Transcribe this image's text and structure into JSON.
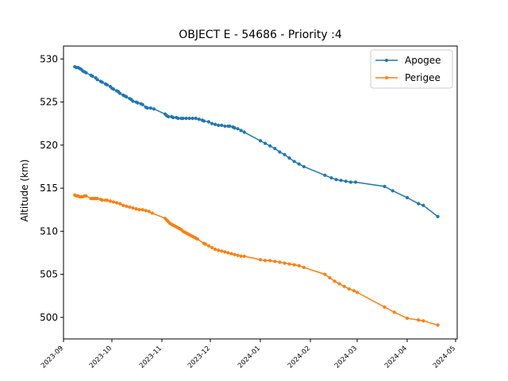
{
  "chart_data": {
    "type": "line",
    "title": "OBJECT E - 54686 - Priority :4",
    "xlabel": "",
    "ylabel": "Altitude (km)",
    "xlim": [
      "2023-09-01",
      "2024-05-02"
    ],
    "ylim": [
      497.5,
      531.5
    ],
    "yticks": [
      500,
      505,
      510,
      515,
      520,
      525,
      530
    ],
    "xticks": [
      "2023-09",
      "2023-10",
      "2023-11",
      "2023-12",
      "2024-01",
      "2024-02",
      "2024-03",
      "2024-04",
      "2024-05"
    ],
    "grid": false,
    "legend": "top-right",
    "series": [
      {
        "name": "Apogee",
        "color": "#1f77b4",
        "marker": "circle",
        "points": [
          [
            "2023-09-08",
            529.1
          ],
          [
            "2023-09-09",
            529.0
          ],
          [
            "2023-09-10",
            529.0
          ],
          [
            "2023-09-11",
            528.9
          ],
          [
            "2023-09-12",
            528.8
          ],
          [
            "2023-09-13",
            528.6
          ],
          [
            "2023-09-14",
            528.5
          ],
          [
            "2023-09-15",
            528.4
          ],
          [
            "2023-09-18",
            528.1
          ],
          [
            "2023-09-19",
            528.0
          ],
          [
            "2023-09-21",
            527.8
          ],
          [
            "2023-09-22",
            527.6
          ],
          [
            "2023-09-24",
            527.4
          ],
          [
            "2023-09-25",
            527.3
          ],
          [
            "2023-09-27",
            527.1
          ],
          [
            "2023-09-28",
            527.0
          ],
          [
            "2023-09-30",
            526.8
          ],
          [
            "2023-10-01",
            526.6
          ],
          [
            "2023-10-02",
            526.5
          ],
          [
            "2023-10-04",
            526.3
          ],
          [
            "2023-10-05",
            526.2
          ],
          [
            "2023-10-06",
            526.0
          ],
          [
            "2023-10-08",
            525.8
          ],
          [
            "2023-10-09",
            525.7
          ],
          [
            "2023-10-10",
            525.6
          ],
          [
            "2023-10-12",
            525.4
          ],
          [
            "2023-10-13",
            525.3
          ],
          [
            "2023-10-14",
            525.1
          ],
          [
            "2023-10-16",
            525.0
          ],
          [
            "2023-10-17",
            524.9
          ],
          [
            "2023-10-19",
            524.8
          ],
          [
            "2023-10-20",
            524.7
          ],
          [
            "2023-10-22",
            524.4
          ],
          [
            "2023-10-23",
            524.3
          ],
          [
            "2023-10-25",
            524.3
          ],
          [
            "2023-10-27",
            524.2
          ],
          [
            "2023-11-03",
            523.6
          ],
          [
            "2023-11-04",
            523.4
          ],
          [
            "2023-11-05",
            523.3
          ],
          [
            "2023-11-07",
            523.3
          ],
          [
            "2023-11-08",
            523.2
          ],
          [
            "2023-11-10",
            523.2
          ],
          [
            "2023-11-11",
            523.1
          ],
          [
            "2023-11-13",
            523.1
          ],
          [
            "2023-11-14",
            523.1
          ],
          [
            "2023-11-16",
            523.1
          ],
          [
            "2023-11-18",
            523.1
          ],
          [
            "2023-11-20",
            523.1
          ],
          [
            "2023-11-22",
            523.1
          ],
          [
            "2023-11-24",
            523.0
          ],
          [
            "2023-11-26",
            522.9
          ],
          [
            "2023-11-27",
            522.8
          ],
          [
            "2023-11-30",
            522.7
          ],
          [
            "2023-12-02",
            522.5
          ],
          [
            "2023-12-04",
            522.4
          ],
          [
            "2023-12-06",
            522.3
          ],
          [
            "2023-12-08",
            522.3
          ],
          [
            "2023-12-10",
            522.2
          ],
          [
            "2023-12-12",
            522.2
          ],
          [
            "2023-12-13",
            522.2
          ],
          [
            "2023-12-15",
            522.1
          ],
          [
            "2023-12-16",
            522.0
          ],
          [
            "2023-12-18",
            521.9
          ],
          [
            "2023-12-20",
            521.7
          ],
          [
            "2023-12-22",
            521.5
          ],
          [
            "2024-01-01",
            520.5
          ],
          [
            "2024-01-04",
            520.2
          ],
          [
            "2024-01-07",
            519.9
          ],
          [
            "2024-01-10",
            519.6
          ],
          [
            "2024-01-13",
            519.2
          ],
          [
            "2024-01-16",
            518.9
          ],
          [
            "2024-01-19",
            518.5
          ],
          [
            "2024-01-22",
            518.1
          ],
          [
            "2024-01-25",
            517.8
          ],
          [
            "2024-01-28",
            517.5
          ],
          [
            "2024-02-10",
            516.5
          ],
          [
            "2024-02-14",
            516.2
          ],
          [
            "2024-02-17",
            516.0
          ],
          [
            "2024-02-20",
            515.9
          ],
          [
            "2024-02-23",
            515.8
          ],
          [
            "2024-02-26",
            515.7
          ],
          [
            "2024-02-29",
            515.7
          ],
          [
            "2024-03-18",
            515.2
          ],
          [
            "2024-03-23",
            514.7
          ],
          [
            "2024-04-01",
            513.9
          ],
          [
            "2024-04-08",
            513.2
          ],
          [
            "2024-04-11",
            513.0
          ],
          [
            "2024-04-20",
            511.7
          ]
        ]
      },
      {
        "name": "Perigee",
        "color": "#ff7f0e",
        "marker": "circle",
        "points": [
          [
            "2023-09-08",
            514.2
          ],
          [
            "2023-09-09",
            514.1
          ],
          [
            "2023-09-10",
            514.1
          ],
          [
            "2023-09-11",
            514.0
          ],
          [
            "2023-09-12",
            514.0
          ],
          [
            "2023-09-13",
            514.0
          ],
          [
            "2023-09-14",
            514.1
          ],
          [
            "2023-09-15",
            514.1
          ],
          [
            "2023-09-18",
            513.8
          ],
          [
            "2023-09-19",
            513.8
          ],
          [
            "2023-09-20",
            513.8
          ],
          [
            "2023-09-21",
            513.8
          ],
          [
            "2023-09-22",
            513.8
          ],
          [
            "2023-09-24",
            513.7
          ],
          [
            "2023-09-25",
            513.6
          ],
          [
            "2023-09-27",
            513.6
          ],
          [
            "2023-09-28",
            513.6
          ],
          [
            "2023-09-30",
            513.5
          ],
          [
            "2023-10-02",
            513.4
          ],
          [
            "2023-10-04",
            513.3
          ],
          [
            "2023-10-06",
            513.2
          ],
          [
            "2023-10-08",
            513.0
          ],
          [
            "2023-10-10",
            512.9
          ],
          [
            "2023-10-12",
            512.8
          ],
          [
            "2023-10-14",
            512.7
          ],
          [
            "2023-10-16",
            512.6
          ],
          [
            "2023-10-18",
            512.5
          ],
          [
            "2023-10-20",
            512.5
          ],
          [
            "2023-10-22",
            512.4
          ],
          [
            "2023-10-24",
            512.3
          ],
          [
            "2023-10-26",
            512.1
          ],
          [
            "2023-11-03",
            511.5
          ],
          [
            "2023-11-04",
            511.3
          ],
          [
            "2023-11-05",
            511.1
          ],
          [
            "2023-11-06",
            510.9
          ],
          [
            "2023-11-07",
            510.8
          ],
          [
            "2023-11-08",
            510.7
          ],
          [
            "2023-11-09",
            510.6
          ],
          [
            "2023-11-10",
            510.5
          ],
          [
            "2023-11-11",
            510.4
          ],
          [
            "2023-11-12",
            510.3
          ],
          [
            "2023-11-13",
            510.2
          ],
          [
            "2023-11-14",
            510.0
          ],
          [
            "2023-11-15",
            509.9
          ],
          [
            "2023-11-16",
            509.8
          ],
          [
            "2023-11-17",
            509.7
          ],
          [
            "2023-11-18",
            509.6
          ],
          [
            "2023-11-19",
            509.5
          ],
          [
            "2023-11-20",
            509.4
          ],
          [
            "2023-11-21",
            509.3
          ],
          [
            "2023-11-22",
            509.2
          ],
          [
            "2023-11-23",
            509.1
          ],
          [
            "2023-11-27",
            508.6
          ],
          [
            "2023-11-28",
            508.5
          ],
          [
            "2023-11-30",
            508.3
          ],
          [
            "2023-12-02",
            508.1
          ],
          [
            "2023-12-04",
            507.9
          ],
          [
            "2023-12-06",
            507.8
          ],
          [
            "2023-12-08",
            507.7
          ],
          [
            "2023-12-10",
            507.6
          ],
          [
            "2023-12-12",
            507.5
          ],
          [
            "2023-12-14",
            507.4
          ],
          [
            "2023-12-16",
            507.3
          ],
          [
            "2023-12-18",
            507.2
          ],
          [
            "2023-12-20",
            507.1
          ],
          [
            "2023-12-22",
            507.1
          ],
          [
            "2024-01-01",
            506.7
          ],
          [
            "2024-01-04",
            506.6
          ],
          [
            "2024-01-07",
            506.6
          ],
          [
            "2024-01-10",
            506.5
          ],
          [
            "2024-01-13",
            506.4
          ],
          [
            "2024-01-16",
            506.3
          ],
          [
            "2024-01-19",
            506.2
          ],
          [
            "2024-01-22",
            506.1
          ],
          [
            "2024-01-25",
            506.0
          ],
          [
            "2024-01-28",
            505.8
          ],
          [
            "2024-02-10",
            505.0
          ],
          [
            "2024-02-13",
            504.6
          ],
          [
            "2024-02-16",
            504.2
          ],
          [
            "2024-02-19",
            503.9
          ],
          [
            "2024-02-22",
            503.6
          ],
          [
            "2024-02-25",
            503.3
          ],
          [
            "2024-02-28",
            503.1
          ],
          [
            "2024-03-01",
            502.9
          ],
          [
            "2024-03-18",
            501.2
          ],
          [
            "2024-03-24",
            500.6
          ],
          [
            "2024-04-01",
            499.9
          ],
          [
            "2024-04-08",
            499.7
          ],
          [
            "2024-04-11",
            499.6
          ],
          [
            "2024-04-20",
            499.1
          ]
        ]
      }
    ]
  }
}
